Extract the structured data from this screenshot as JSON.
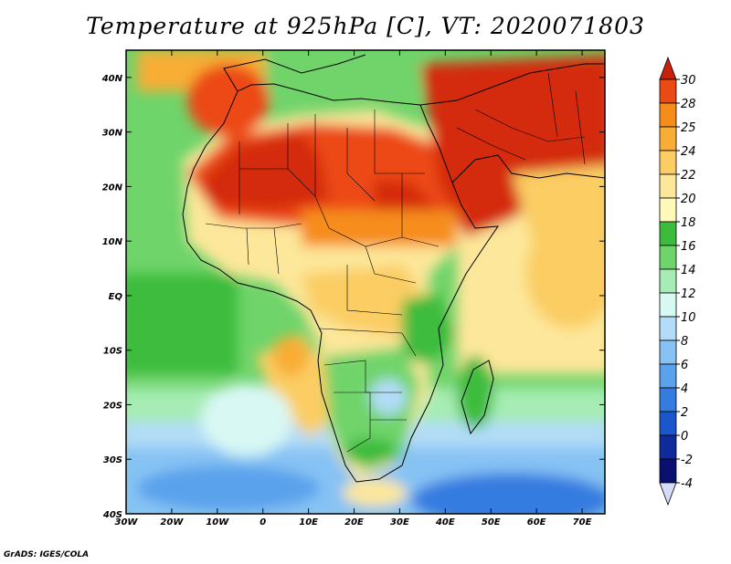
{
  "title": "Temperature at 925hPa [C], VT: 2020071803",
  "credit": "GrADS: IGES/COLA",
  "map": {
    "lon_range": [
      -30,
      75
    ],
    "lat_range": [
      -40,
      45
    ],
    "lon_ticks": [
      {
        "value": -30,
        "label": "30W"
      },
      {
        "value": -20,
        "label": "20W"
      },
      {
        "value": -10,
        "label": "10W"
      },
      {
        "value": 0,
        "label": "0"
      },
      {
        "value": 10,
        "label": "10E"
      },
      {
        "value": 20,
        "label": "20E"
      },
      {
        "value": 30,
        "label": "30E"
      },
      {
        "value": 40,
        "label": "40E"
      },
      {
        "value": 50,
        "label": "50E"
      },
      {
        "value": 60,
        "label": "60E"
      },
      {
        "value": 70,
        "label": "70E"
      }
    ],
    "lat_ticks": [
      {
        "value": 40,
        "label": "40N"
      },
      {
        "value": 30,
        "label": "30N"
      },
      {
        "value": 20,
        "label": "20N"
      },
      {
        "value": 10,
        "label": "10N"
      },
      {
        "value": 0,
        "label": "EQ"
      },
      {
        "value": -10,
        "label": "10S"
      },
      {
        "value": -20,
        "label": "20S"
      },
      {
        "value": -30,
        "label": "30S"
      },
      {
        "value": -40,
        "label": "40S"
      }
    ]
  },
  "colorbar": {
    "levels": [
      "30",
      "28",
      "25",
      "24",
      "22",
      "20",
      "18",
      "16",
      "14",
      "12",
      "10",
      "8",
      "6",
      "4",
      "2",
      "0",
      "-2",
      "-4"
    ],
    "colors": [
      "#d42a0c",
      "#ec4a14",
      "#f68d1a",
      "#f8ad35",
      "#fbcd64",
      "#fde79a",
      "#fffab8",
      "#3cbc3c",
      "#6fd46a",
      "#a6ecb4",
      "#d8f8f4",
      "#b2dcf8",
      "#86c2f4",
      "#5aa2ec",
      "#347ce0",
      "#1a56cc",
      "#0f2a9a",
      "#0a1070"
    ],
    "over_color": "#c8200a",
    "under_color": "#d6dcf8"
  }
}
